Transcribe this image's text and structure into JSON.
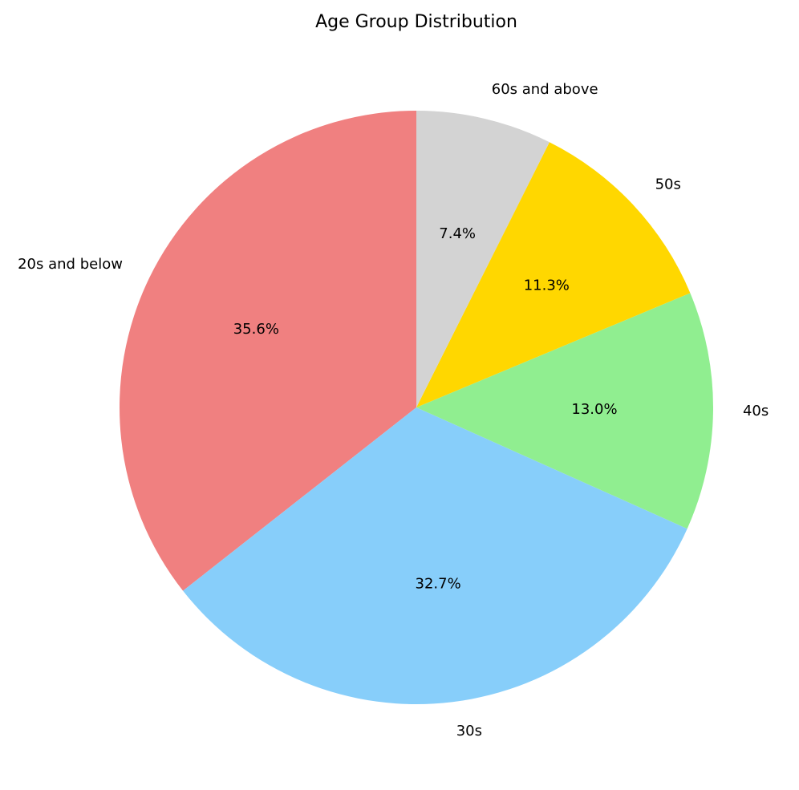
{
  "chart_data": {
    "type": "pie",
    "title": "Age Group Distribution",
    "start_angle_deg": 90,
    "direction": "counterclockwise",
    "slices": [
      {
        "label": "20s and below",
        "value": 35.6,
        "pct_label": "35.6%",
        "color": "#F08080"
      },
      {
        "label": "30s",
        "value": 32.7,
        "pct_label": "32.7%",
        "color": "#87CEFA"
      },
      {
        "label": "40s",
        "value": 13.0,
        "pct_label": "13.0%",
        "color": "#90EE90"
      },
      {
        "label": "50s",
        "value": 11.3,
        "pct_label": "11.3%",
        "color": "#FFD700"
      },
      {
        "label": "60s and above",
        "value": 7.4,
        "pct_label": "7.4%",
        "color": "#D3D3D3"
      }
    ]
  }
}
